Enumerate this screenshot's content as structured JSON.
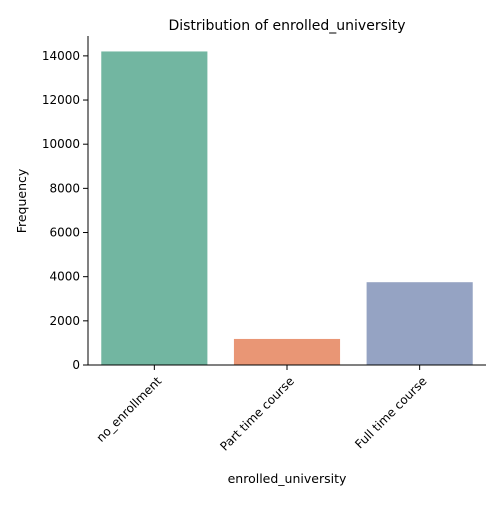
{
  "chart_data": {
    "type": "bar",
    "title": "Distribution of enrolled_university",
    "xlabel": "enrolled_university",
    "ylabel": "Frequency",
    "categories": [
      "no_enrollment",
      "Part time course",
      "Full time course"
    ],
    "values": [
      14200,
      1180,
      3750
    ],
    "colors": [
      "#72b6a1",
      "#e99675",
      "#95a3c3"
    ],
    "ylim": [
      0,
      14900
    ],
    "yticks": [
      0,
      2000,
      4000,
      6000,
      8000,
      10000,
      12000,
      14000
    ],
    "grid": false,
    "legend": "none"
  }
}
